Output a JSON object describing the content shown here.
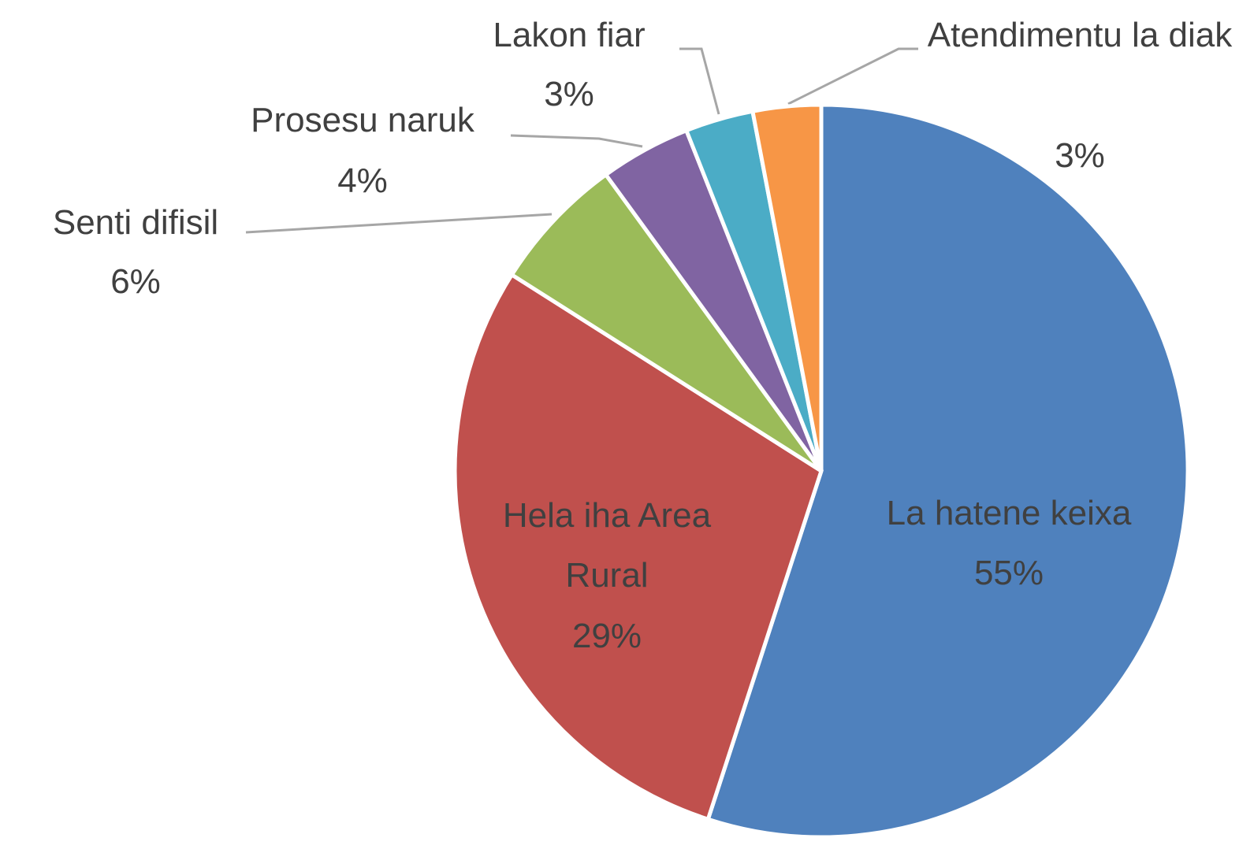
{
  "chart_data": {
    "type": "pie",
    "categories": [
      "La hatene keixa",
      "Hela iha Area Rural",
      "Senti difisil",
      "Prosesu naruk",
      "Lakon fiar",
      "Atendimentu la diak"
    ],
    "values": [
      55,
      29,
      6,
      4,
      3,
      3
    ],
    "value_labels": [
      "55%",
      "29%",
      "6%",
      "4%",
      "3%",
      "3%"
    ],
    "colors": [
      "#4f81bd",
      "#c0504d",
      "#9bbb59",
      "#8064a2",
      "#4bacc6",
      "#f79646"
    ]
  }
}
